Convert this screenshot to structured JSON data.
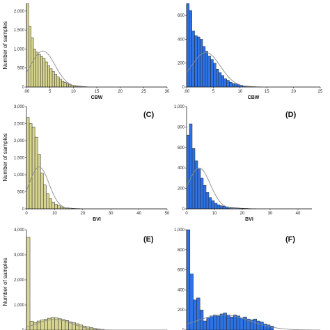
{
  "colors": {
    "yellow_bar": "#d7d58f",
    "blue_bar": "#2e73e6",
    "bar_edge": "#222222",
    "curve": "#8c8c8c"
  },
  "chart_data": [
    {
      "type": "bar",
      "label": "",
      "ylabel": "Number of samples",
      "xlabel": "CBW",
      "xlim": [
        0,
        30
      ],
      "ylim": [
        0,
        2200
      ],
      "xticks": [
        ".00",
        "5",
        "10",
        "15",
        "20",
        "25",
        "30"
      ],
      "yticks": [
        "0",
        "500",
        "1,000",
        "1,500",
        "2,000"
      ],
      "bin_width": 0.5,
      "counts": [
        2200,
        1600,
        1300,
        1000,
        920,
        860,
        800,
        760,
        660,
        560,
        480,
        410,
        340,
        270,
        210,
        160,
        120,
        90,
        70,
        50,
        40,
        30,
        25,
        18,
        12,
        8,
        5,
        3,
        2,
        1
      ],
      "curve": {
        "mean": 3.5,
        "sd": 2.6,
        "peak": 950
      }
    },
    {
      "type": "bar",
      "label": "",
      "ylabel": "",
      "xlabel": "CBW",
      "xlim": [
        0,
        25
      ],
      "ylim": [
        0,
        700
      ],
      "xticks": [
        ".00",
        "5",
        "10",
        "15",
        "20",
        "25"
      ],
      "yticks": [
        "0",
        "200",
        "400",
        "600"
      ],
      "bin_width": 0.5,
      "counts": [
        700,
        640,
        470,
        430,
        420,
        400,
        340,
        300,
        260,
        230,
        200,
        150,
        120,
        95,
        70,
        55,
        40,
        30,
        25,
        20,
        15,
        10,
        8,
        6,
        4,
        3,
        2,
        2,
        1,
        1
      ],
      "curve": {
        "mean": 3.6,
        "sd": 2.7,
        "peak": 290
      }
    },
    {
      "type": "bar",
      "label": "(C)",
      "ylabel": "Number of samples",
      "xlabel": "BVI",
      "xlim": [
        0,
        50
      ],
      "ylim": [
        0,
        3000
      ],
      "xticks": [
        "0",
        "10",
        "20",
        "30",
        "40",
        "50"
      ],
      "yticks": [
        "0",
        "500",
        "1,000",
        "1,500",
        "2,000",
        "2,500",
        "3,000"
      ],
      "bin_width": 1,
      "counts": [
        2680,
        2500,
        2400,
        2100,
        1600,
        1050,
        700,
        450,
        300,
        200,
        130,
        90,
        60,
        40,
        30,
        20,
        15,
        10,
        8,
        6,
        5,
        3,
        2,
        2,
        1
      ],
      "curve": {
        "mean": 4.5,
        "sd": 3.5,
        "peak": 1230
      }
    },
    {
      "type": "bar",
      "label": "(D)",
      "ylabel": "",
      "xlabel": "BVI",
      "xlim": [
        0,
        45
      ],
      "ylim": [
        0,
        1000
      ],
      "xticks": [
        "0",
        "10",
        "20",
        "30",
        "40"
      ],
      "yticks": [
        "0",
        "200",
        "400",
        "600",
        "800",
        "1,000"
      ],
      "bin_width": 1,
      "counts": [
        720,
        830,
        590,
        470,
        390,
        300,
        230,
        160,
        110,
        80,
        55,
        40,
        30,
        25,
        20,
        15,
        12,
        10,
        8,
        6,
        5,
        4,
        3,
        2,
        2
      ],
      "curve": {
        "mean": 4.5,
        "sd": 4.0,
        "peak": 400
      }
    },
    {
      "type": "bar",
      "label": "(E)",
      "ylabel": "Number of samples",
      "xlabel": "",
      "xlim": [
        0,
        40
      ],
      "ylim": [
        0,
        4000
      ],
      "xticks": [],
      "yticks": [
        "0",
        "1,000",
        "2,000",
        "3,000",
        "4,000"
      ],
      "bin_width": 1,
      "counts": [
        3700,
        350,
        300,
        360,
        400,
        430,
        470,
        500,
        480,
        450,
        420,
        380,
        330,
        290,
        250,
        200,
        160,
        120,
        90,
        60,
        40,
        25
      ],
      "curve": {
        "mean": 8,
        "sd": 5,
        "peak": 420
      }
    },
    {
      "type": "bar",
      "label": "(F)",
      "ylabel": "",
      "xlabel": "",
      "xlim": [
        0,
        40
      ],
      "ylim": [
        0,
        1000
      ],
      "xticks": [],
      "yticks": [
        "0",
        "200",
        "400",
        "600",
        "800",
        "1,000"
      ],
      "bin_width": 1,
      "counts": [
        1000,
        560,
        300,
        320,
        200,
        90,
        120,
        140,
        150,
        140,
        160,
        170,
        150,
        130,
        150,
        140,
        120,
        130,
        110,
        100,
        110,
        90,
        80,
        60,
        50,
        40
      ],
      "curve": {
        "mean": 11,
        "sd": 8,
        "peak": 150
      }
    }
  ]
}
